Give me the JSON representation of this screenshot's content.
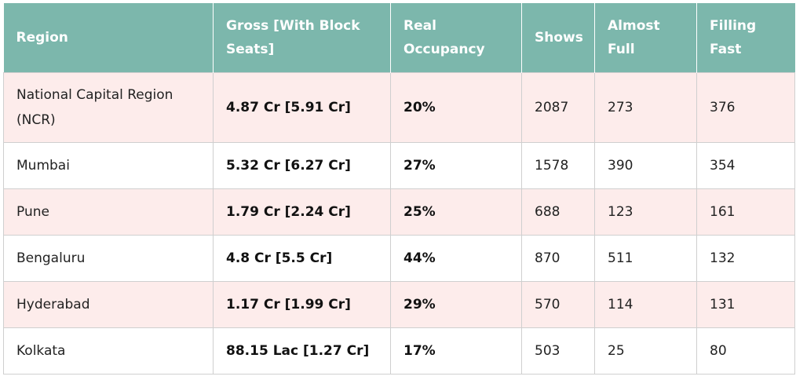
{
  "table": {
    "headers": [
      "Region",
      "Gross [With Block Seats]",
      "Real Occupancy",
      "Shows",
      "Almost Full",
      "Filling Fast"
    ],
    "rows": [
      {
        "region": "National Capital Region (NCR)",
        "gross": "4.87 Cr [5.91 Cr]",
        "occupancy": "20%",
        "shows": "2087",
        "almost_full": "273",
        "filling_fast": "376"
      },
      {
        "region": "Mumbai",
        "gross": "5.32 Cr [6.27 Cr]",
        "occupancy": "27%",
        "shows": "1578",
        "almost_full": "390",
        "filling_fast": "354"
      },
      {
        "region": "Pune",
        "gross": "1.79 Cr [2.24 Cr]",
        "occupancy": "25%",
        "shows": "688",
        "almost_full": "123",
        "filling_fast": "161"
      },
      {
        "region": "Bengaluru",
        "gross": "4.8 Cr [5.5 Cr]",
        "occupancy": "44%",
        "shows": "870",
        "almost_full": "511",
        "filling_fast": "132"
      },
      {
        "region": "Hyderabad",
        "gross": "1.17 Cr [1.99 Cr]",
        "occupancy": "29%",
        "shows": "570",
        "almost_full": "114",
        "filling_fast": "131"
      },
      {
        "region": "Kolkata",
        "gross": "88.15 Lac [1.27 Cr]",
        "occupancy": "17%",
        "shows": "503",
        "almost_full": "25",
        "filling_fast": "80"
      }
    ],
    "colors": {
      "header_bg": "#7cb7ac",
      "header_text": "#ffffff",
      "row_alt_bg": "#fdeceb",
      "border": "#cfcfcf"
    }
  }
}
